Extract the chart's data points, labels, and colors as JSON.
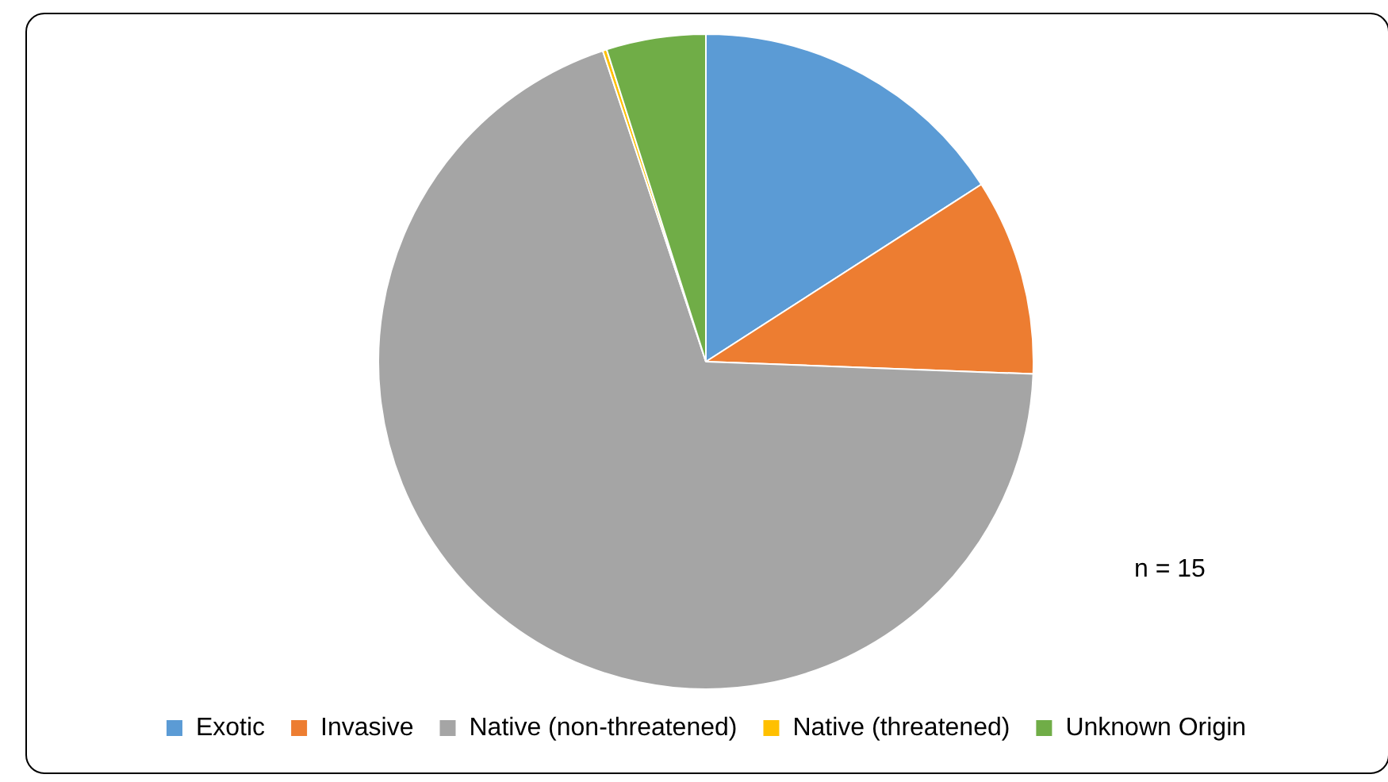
{
  "chart_data": {
    "type": "pie",
    "categories": [
      "Exotic",
      "Invasive",
      "Native (non-threatened)",
      "Native (threatened)",
      "Unknown Origin"
    ],
    "values": [
      15.9,
      9.7,
      69.3,
      0.2,
      4.9
    ],
    "colors": [
      "#5b9bd5",
      "#ed7d31",
      "#a5a5a5",
      "#ffc000",
      "#70ad47"
    ],
    "legend": "bottom",
    "annotations": [
      "n = 15"
    ]
  }
}
